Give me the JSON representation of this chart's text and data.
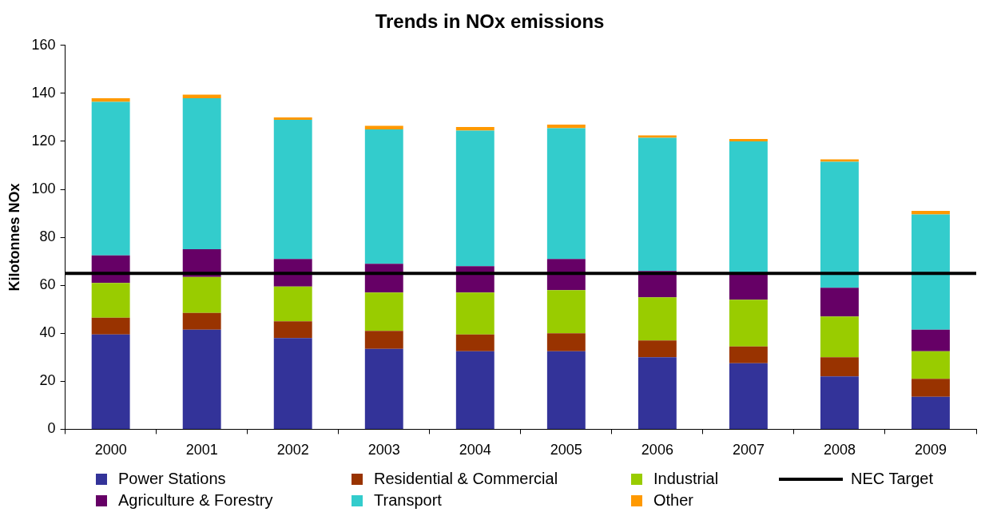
{
  "chart_data": {
    "type": "bar",
    "title": "Trends in NOx emissions",
    "ylabel": "Kilotonnes NOx",
    "stacked": true,
    "categories": [
      "2000",
      "2001",
      "2002",
      "2003",
      "2004",
      "2005",
      "2006",
      "2007",
      "2008",
      "2009"
    ],
    "series": [
      {
        "name": "Power Stations",
        "color": "#333399",
        "values": [
          39.5,
          41.5,
          38,
          33.5,
          32.5,
          32.5,
          30,
          27.5,
          22,
          13.5
        ]
      },
      {
        "name": "Residential & Commercial",
        "color": "#993300",
        "values": [
          7,
          7,
          7,
          7.5,
          7,
          7.5,
          7,
          7,
          8,
          7.5
        ]
      },
      {
        "name": "Industrial",
        "color": "#99cc00",
        "values": [
          14.5,
          15,
          14.5,
          16,
          17.5,
          18,
          18,
          19.5,
          17,
          11.5
        ]
      },
      {
        "name": "Agriculture & Forestry",
        "color": "#660066",
        "values": [
          11.5,
          11.5,
          11.5,
          12,
          11,
          13,
          11,
          11,
          12,
          9
        ]
      },
      {
        "name": "Transport",
        "color": "#33cccc",
        "values": [
          64,
          63,
          58,
          56,
          56.5,
          54.5,
          55.5,
          55,
          52.5,
          48
        ]
      },
      {
        "name": "Other",
        "color": "#ff9900",
        "values": [
          1.5,
          1.5,
          1,
          1.5,
          1.5,
          1.5,
          1,
          1,
          1,
          1.5
        ]
      }
    ],
    "ref_lines": [
      {
        "axis": "y",
        "value": 65,
        "label": "NEC Target",
        "color": "#000000",
        "line_style": "solid"
      }
    ],
    "ylim": [
      0,
      160
    ],
    "yticks": [
      0,
      20,
      40,
      60,
      80,
      100,
      120,
      140,
      160
    ],
    "grid": false,
    "legend": "bottom"
  }
}
